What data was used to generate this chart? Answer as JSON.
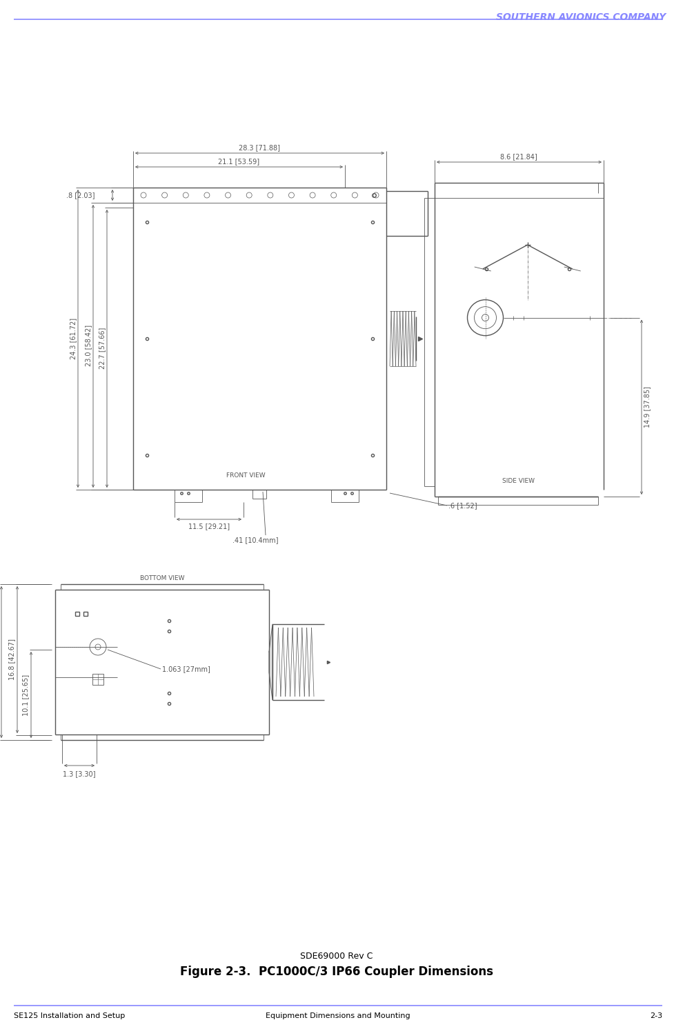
{
  "page_width": 9.77,
  "page_height": 14.92,
  "background_color": "#ffffff",
  "header_text": "SOUTHERN AVIONICS COMPANY",
  "header_color": "#8888ff",
  "footer_left": "SE125 Installation and Setup",
  "footer_center": "Equipment Dimensions and Mounting",
  "footer_right": "2-3",
  "caption_line1": "SDE69000 Rev C",
  "caption_line2": "Figure 2-3.  PC1000C/3 IP66 Coupler Dimensions",
  "drawing_color": "#555555",
  "dim_color": "#555555"
}
